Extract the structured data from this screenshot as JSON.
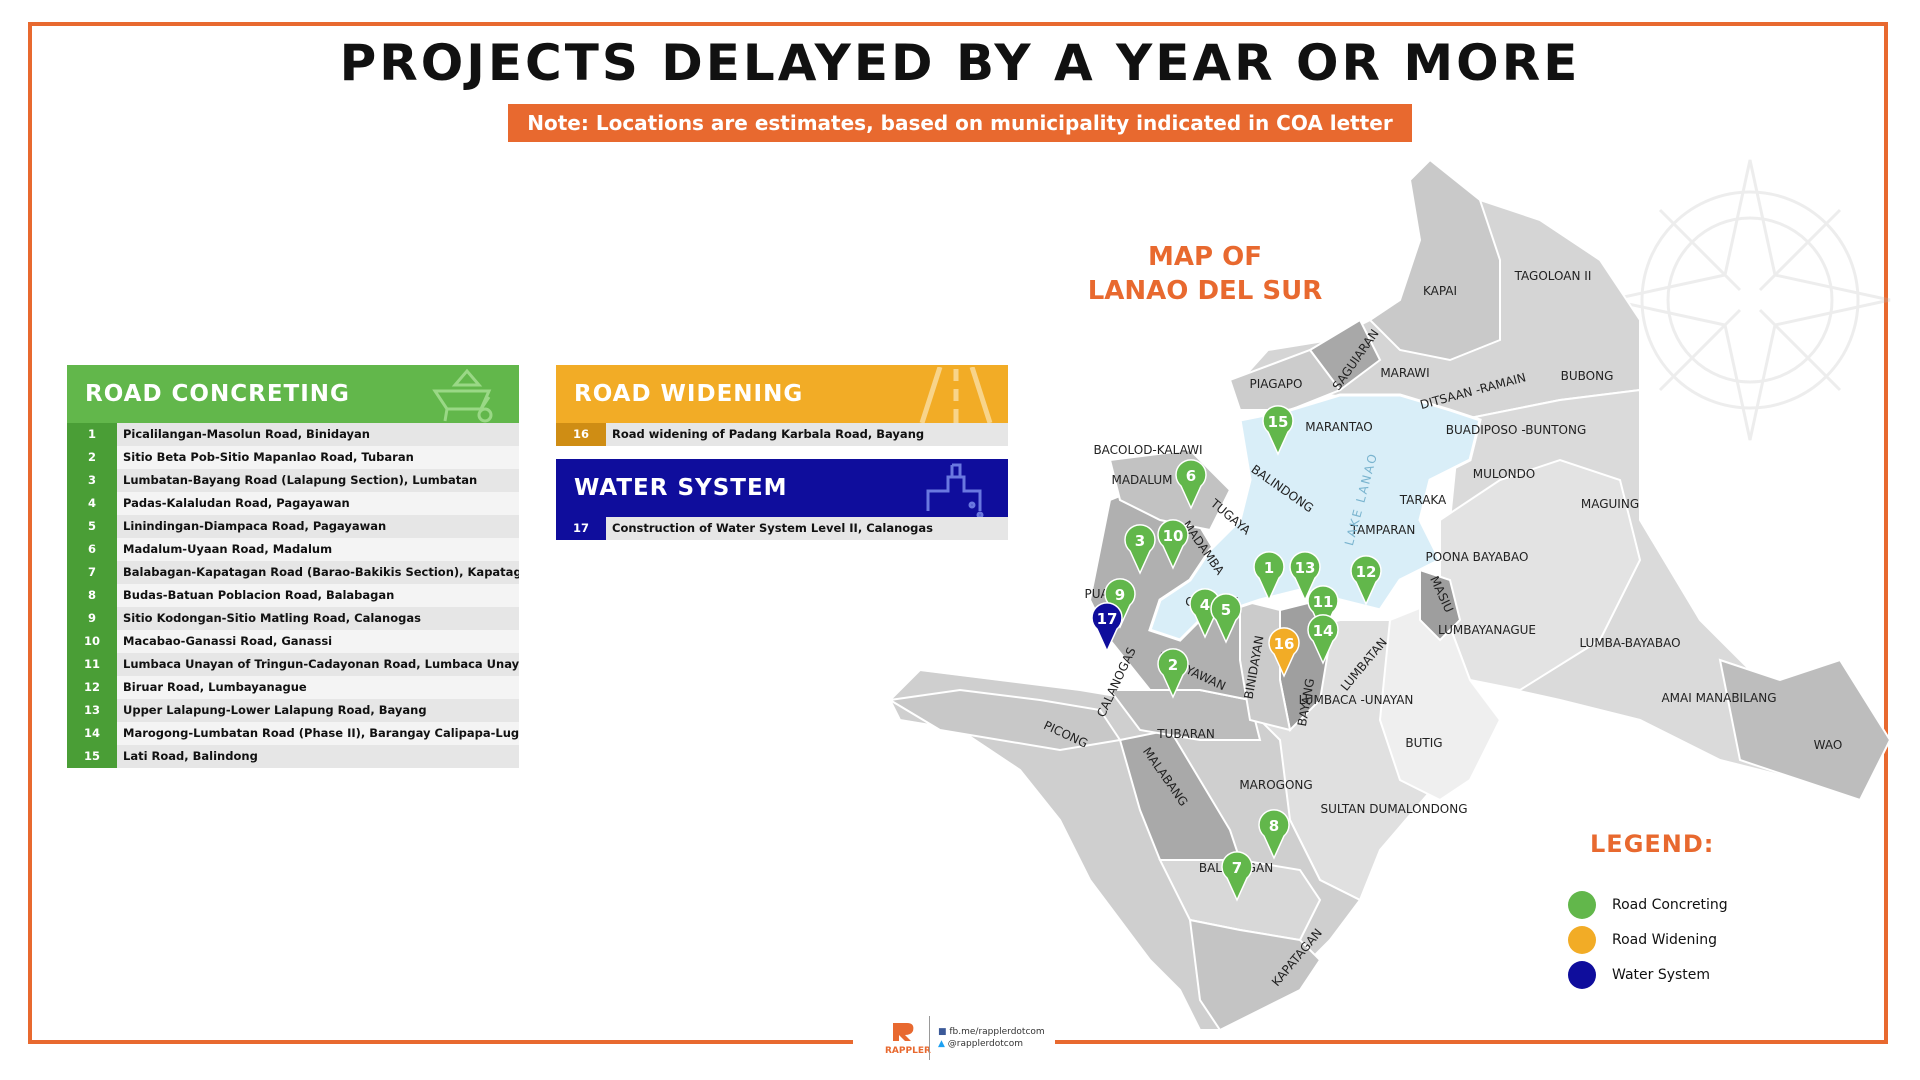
{
  "title": "PROJECTS DELAYED BY A YEAR OR MORE",
  "note": "Note: Locations are estimates, based on municipality indicated in COA letter",
  "map_title_line1": "MAP OF",
  "map_title_line2": "LANAO DEL SUR",
  "road_concreting": {
    "heading": "ROAD CONCRETING",
    "items": [
      {
        "num": "1",
        "text": "Picalilangan-Masolun Road, Binidayan"
      },
      {
        "num": "2",
        "text": "Sitio Beta Pob-Sitio Mapanlao Road, Tubaran"
      },
      {
        "num": "3",
        "text": "Lumbatan-Bayang Road (Lalapung Section), Lumbatan"
      },
      {
        "num": "4",
        "text": "Padas-Kalaludan Road, Pagayawan"
      },
      {
        "num": "5",
        "text": "Linindingan-Diampaca Road, Pagayawan"
      },
      {
        "num": "6",
        "text": "Madalum-Uyaan Road, Madalum"
      },
      {
        "num": "7",
        "text": "Balabagan-Kapatagan Road (Barao-Bakikis Section), Kapatagan"
      },
      {
        "num": "8",
        "text": "Budas-Batuan Poblacion Road, Balabagan"
      },
      {
        "num": "9",
        "text": "Sitio Kodongan-Sitio Matling Road, Calanogas"
      },
      {
        "num": "10",
        "text": "Macabao-Ganassi Road, Ganassi"
      },
      {
        "num": "11",
        "text": "Lumbaca Unayan of Tringun-Cadayonan Road, Lumbaca Unayan"
      },
      {
        "num": "12",
        "text": "Biruar Road, Lumbayanague"
      },
      {
        "num": "13",
        "text": "Upper Lalapung-Lower Lalapung Road, Bayang"
      },
      {
        "num": "14",
        "text": "Marogong-Lumbatan Road (Phase II), Barangay Calipapa-Lugitip"
      },
      {
        "num": "15",
        "text": "Lati Road, Balindong"
      }
    ]
  },
  "road_widening": {
    "heading": "ROAD WIDENING",
    "items": [
      {
        "num": "16",
        "text": "Road widening of Padang Karbala Road, Bayang"
      }
    ]
  },
  "water_system": {
    "heading": "WATER SYSTEM",
    "items": [
      {
        "num": "17",
        "text": "Construction of Water System Level II, Calanogas"
      }
    ]
  },
  "legend": {
    "title": "LEGEND:",
    "items": [
      {
        "label": "Road Concreting",
        "color": "#62b74b"
      },
      {
        "label": "Road Widening",
        "color": "#f2ac26"
      },
      {
        "label": "Water System",
        "color": "#0f0d9c"
      }
    ]
  },
  "colors": {
    "accent": "#e8692f",
    "green": "#62b74b",
    "yellow": "#f2ac26",
    "blue": "#0f0d9c",
    "lake": "#d9eef8"
  },
  "lake_label": "LAKE LANAO",
  "municipalities": [
    "KAPAI",
    "TAGOLOAN II",
    "SAGUIARAN",
    "MARAWI",
    "PIAGAPO",
    "DITSAAN -RAMAIN",
    "BUBONG",
    "MARANTAO",
    "BUADIPOSO -BUNTONG",
    "BACOLOD-KALAWI",
    "BALINDONG",
    "MULONDO",
    "MADALUM",
    "TARAKA",
    "MAGUING",
    "TUGAYA",
    "MADAMBA",
    "TAMPARAN",
    "POONA BAYABAO",
    "PUALAS",
    "GANASSI",
    "MASIU",
    "LUMBAYANAGUE",
    "LUMBA-BAYABAO",
    "BINIDAYAN",
    "PAGAYAWAN",
    "LUMBATAN",
    "CALANOGAS",
    "BAYANG",
    "LUMBACA -UNAYAN",
    "AMAI MANABILANG",
    "TUBARAN",
    "PICONG",
    "BUTIG",
    "WAO",
    "MALABANG",
    "MAROGONG",
    "SULTAN DUMALONDONG",
    "BALABAGAN",
    "KAPATAGAN"
  ],
  "markers": [
    {
      "num": "1",
      "category": "road_concreting"
    },
    {
      "num": "2",
      "category": "road_concreting"
    },
    {
      "num": "3",
      "category": "road_concreting"
    },
    {
      "num": "4",
      "category": "road_concreting"
    },
    {
      "num": "5",
      "category": "road_concreting"
    },
    {
      "num": "6",
      "category": "road_concreting"
    },
    {
      "num": "7",
      "category": "road_concreting"
    },
    {
      "num": "8",
      "category": "road_concreting"
    },
    {
      "num": "9",
      "category": "road_concreting"
    },
    {
      "num": "10",
      "category": "road_concreting"
    },
    {
      "num": "11",
      "category": "road_concreting"
    },
    {
      "num": "12",
      "category": "road_concreting"
    },
    {
      "num": "13",
      "category": "road_concreting"
    },
    {
      "num": "14",
      "category": "road_concreting"
    },
    {
      "num": "15",
      "category": "road_concreting"
    },
    {
      "num": "16",
      "category": "road_widening"
    },
    {
      "num": "17",
      "category": "water_system"
    }
  ],
  "footer": {
    "logo": "RAPPLER",
    "facebook": "fb.me/rapplerdotcom",
    "twitter": "@rapplerdotcom"
  }
}
